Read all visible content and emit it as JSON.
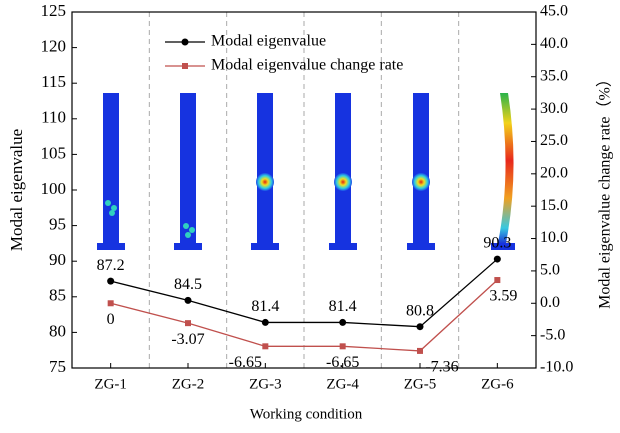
{
  "chart_data": {
    "type": "line",
    "categories": [
      "ZG-1",
      "ZG-2",
      "ZG-3",
      "ZG-4",
      "ZG-5",
      "ZG-6"
    ],
    "xlabel": "Working condition",
    "ylabel": "Modal eigenvalue",
    "y2label": "Modal eigenvalue change rate（%）",
    "ylim": [
      75,
      125
    ],
    "yticks": [
      75,
      80,
      85,
      90,
      95,
      100,
      105,
      110,
      115,
      120,
      125
    ],
    "y2lim": [
      -10,
      45
    ],
    "y2ticks": [
      {
        "value": -10,
        "label": "-10.0"
      },
      {
        "value": -5,
        "label": "-5.0"
      },
      {
        "value": 0,
        "label": "0.0"
      },
      {
        "value": 5,
        "label": "5.0"
      },
      {
        "value": 10,
        "label": "10.0"
      },
      {
        "value": 15,
        "label": "15.0"
      },
      {
        "value": 20,
        "label": "20.0"
      },
      {
        "value": 25,
        "label": "25.0"
      },
      {
        "value": 30,
        "label": "30.0"
      },
      {
        "value": 35,
        "label": "35.0"
      },
      {
        "value": 40,
        "label": "40.0"
      },
      {
        "value": 45,
        "label": "45.0"
      }
    ],
    "legend": "upper center",
    "series": [
      {
        "name": "Modal eigenvalue",
        "color": "#000000",
        "marker": "circle",
        "values": [
          87.2,
          84.5,
          81.4,
          81.4,
          80.8,
          90.3
        ]
      },
      {
        "name": "Modal eigenvalue change rate",
        "color": "#c0504d",
        "marker": "square",
        "axis": "y2",
        "values": [
          0,
          -3.07,
          -6.65,
          -6.65,
          -7.36,
          3.59
        ]
      }
    ]
  }
}
